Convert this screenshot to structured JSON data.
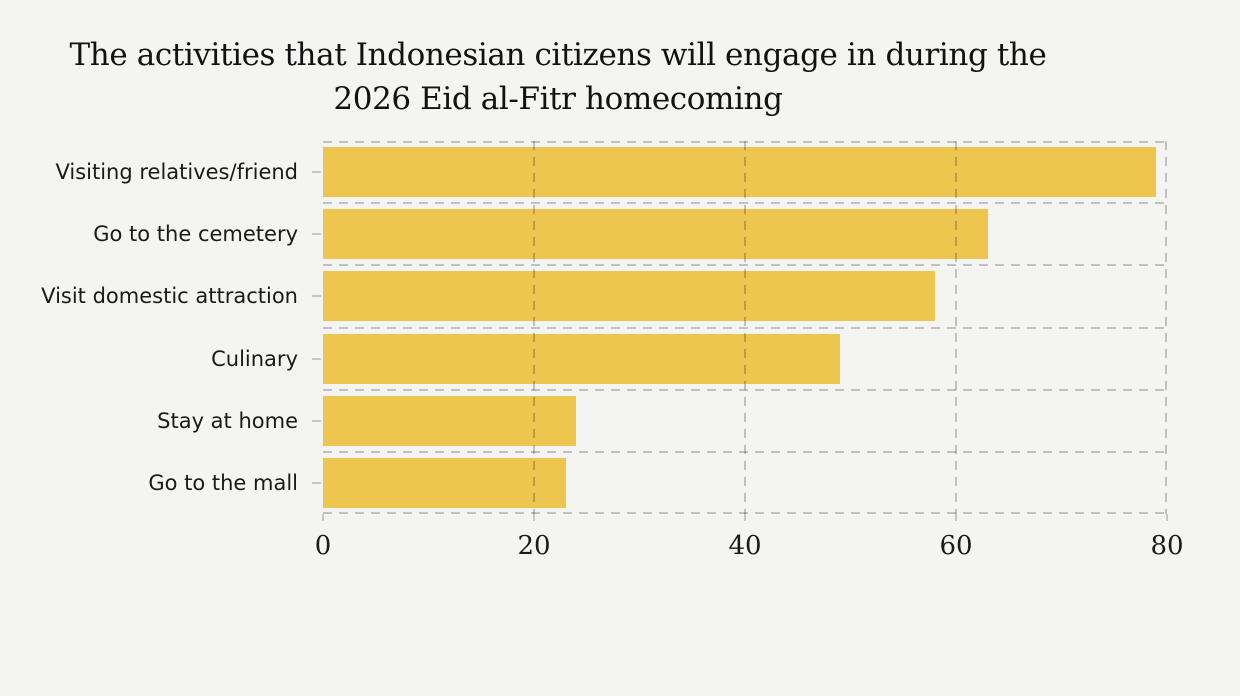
{
  "figure": {
    "background_color": "#F4F4F2"
  },
  "chart_data": {
    "type": "bar",
    "orientation": "horizontal",
    "title": "The activities that Indonesian citizens will engage in during the 2026 Eid al-Fitr homecoming",
    "title_lines": [
      "The activities that Indonesian citizens will engage in during the",
      "2026 Eid al-Fitr homecoming"
    ],
    "categories": [
      "Visiting relatives/friend",
      "Go to the cemetery",
      "Visit domestic attraction",
      "Culinary",
      "Stay at home",
      "Go to the mall"
    ],
    "values": [
      79,
      63,
      58,
      49,
      24,
      23
    ],
    "xlabel": "",
    "ylabel": "",
    "xlim": [
      0,
      80
    ],
    "xticks": [
      0,
      20,
      40,
      60,
      80
    ],
    "grid": "dashed",
    "grid_axes": "both",
    "legend": "none",
    "bar_color": "#EEC64F",
    "grid_color": "#C9C9C9",
    "tick_color": "#C6C6C6",
    "title_color": "#121212",
    "label_color": "#1A1A1A"
  }
}
